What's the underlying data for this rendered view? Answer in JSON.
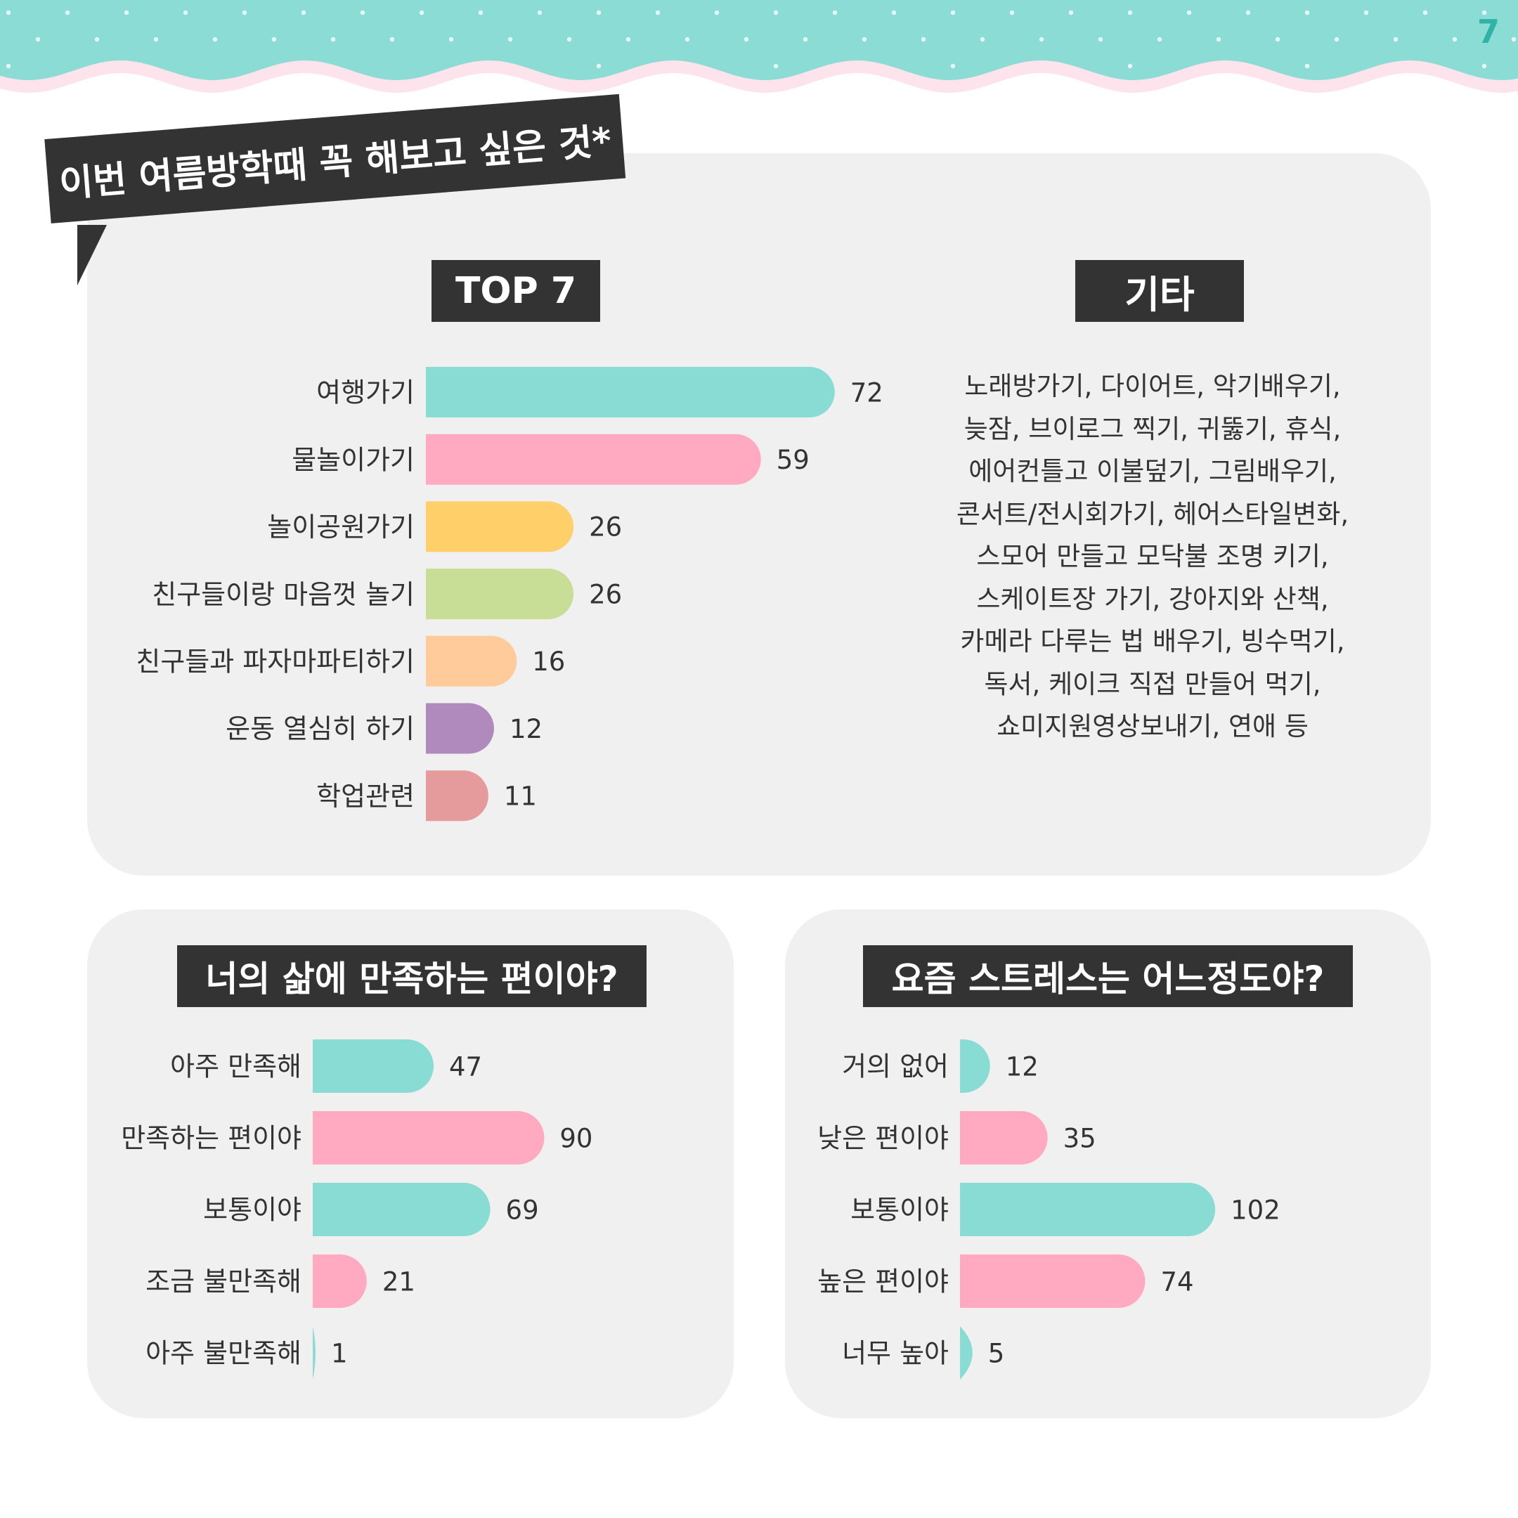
{
  "page_number": "7",
  "colors": {
    "teal": "#88dcd4",
    "pink": "#ffaac0",
    "yellow": "#ffd06a",
    "green": "#c8de96",
    "peach": "#ffcb9a",
    "purple": "#b08abc",
    "rose": "#e59a9c",
    "header_teal": "#8adcd4",
    "header_pink": "#fde4ec",
    "dark": "#333333",
    "panel": "#f0f0f0"
  },
  "banner": {
    "title": "이번 여름방학때 꼭 해보고 싶은 것*"
  },
  "top7_section": {
    "tag": "TOP 7"
  },
  "etc_section": {
    "tag": "기타",
    "lines": [
      "노래방가기, 다이어트, 악기배우기,",
      "늦잠, 브이로그 찍기, 귀뚫기, 휴식,",
      "에어컨틀고 이불덮기, 그림배우기,",
      "콘서트/전시회가기, 헤어스타일변화,",
      "스모어 만들고 모닥불 조명 키기,",
      "스케이트장 가기, 강아지와 산책,",
      "카메라 다루는 법 배우기, 빙수먹기,",
      "독서, 케이크 직접 만들어 먹기,",
      "쇼미지원영상보내기, 연애 등"
    ]
  },
  "chart_data": [
    {
      "type": "bar",
      "orientation": "horizontal",
      "title": "TOP 7",
      "categories": [
        "여행가기",
        "물놀이가기",
        "놀이공원가기",
        "친구들이랑 마음껏 놀기",
        "친구들과 파자마파티하기",
        "운동 열심히 하기",
        "학업관련"
      ],
      "values": [
        72,
        59,
        26,
        26,
        16,
        12,
        11
      ],
      "bar_colors": [
        "teal",
        "pink",
        "yellow",
        "green",
        "peach",
        "purple",
        "rose"
      ],
      "value_labels": [
        "72",
        "59",
        "26",
        "26",
        "16",
        "12",
        "11"
      ]
    },
    {
      "type": "bar",
      "orientation": "horizontal",
      "title": "너의 삶에 만족하는 편이야?",
      "categories": [
        "아주 만족해",
        "만족하는 편이야",
        "보통이야",
        "조금 불만족해",
        "아주 불만족해"
      ],
      "values": [
        47,
        90,
        69,
        21,
        1
      ],
      "bar_colors": [
        "teal",
        "pink",
        "teal",
        "pink",
        "teal"
      ],
      "value_labels": [
        "47",
        "90",
        "69",
        "21",
        "1"
      ]
    },
    {
      "type": "bar",
      "orientation": "horizontal",
      "title": "요즘 스트레스는 어느정도야?",
      "categories": [
        "거의 없어",
        "낮은 편이야",
        "보통이야",
        "높은 편이야",
        "너무 높아"
      ],
      "values": [
        12,
        35,
        102,
        74,
        5
      ],
      "bar_colors": [
        "teal",
        "pink",
        "teal",
        "pink",
        "teal"
      ],
      "value_labels": [
        "12",
        "35",
        "102",
        "74",
        "5"
      ]
    }
  ]
}
